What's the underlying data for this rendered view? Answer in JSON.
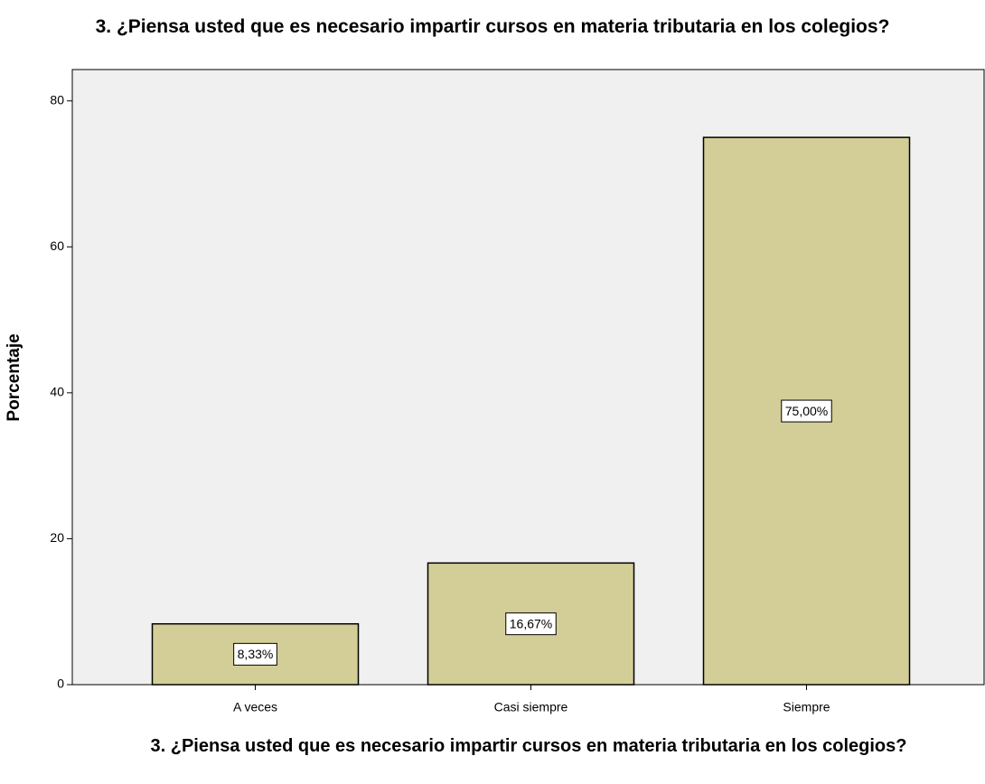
{
  "chart_data": {
    "type": "bar",
    "title": "3. ¿Piensa usted que es necesario impartir cursos en materia tributaria en los colegios?",
    "xlabel": "3. ¿Piensa usted que es necesario impartir cursos en materia tributaria en los colegios?",
    "ylabel": "Porcentaje",
    "categories": [
      "A veces",
      "Casi siempre",
      "Siempre"
    ],
    "values": [
      8.33,
      16.67,
      75
    ],
    "value_labels": [
      "8,33%",
      "16,67%",
      "75,00%"
    ],
    "color": "#d3ce97",
    "ylim": [
      0,
      84.3
    ],
    "yticks": [
      0,
      20,
      40,
      60,
      80
    ]
  }
}
